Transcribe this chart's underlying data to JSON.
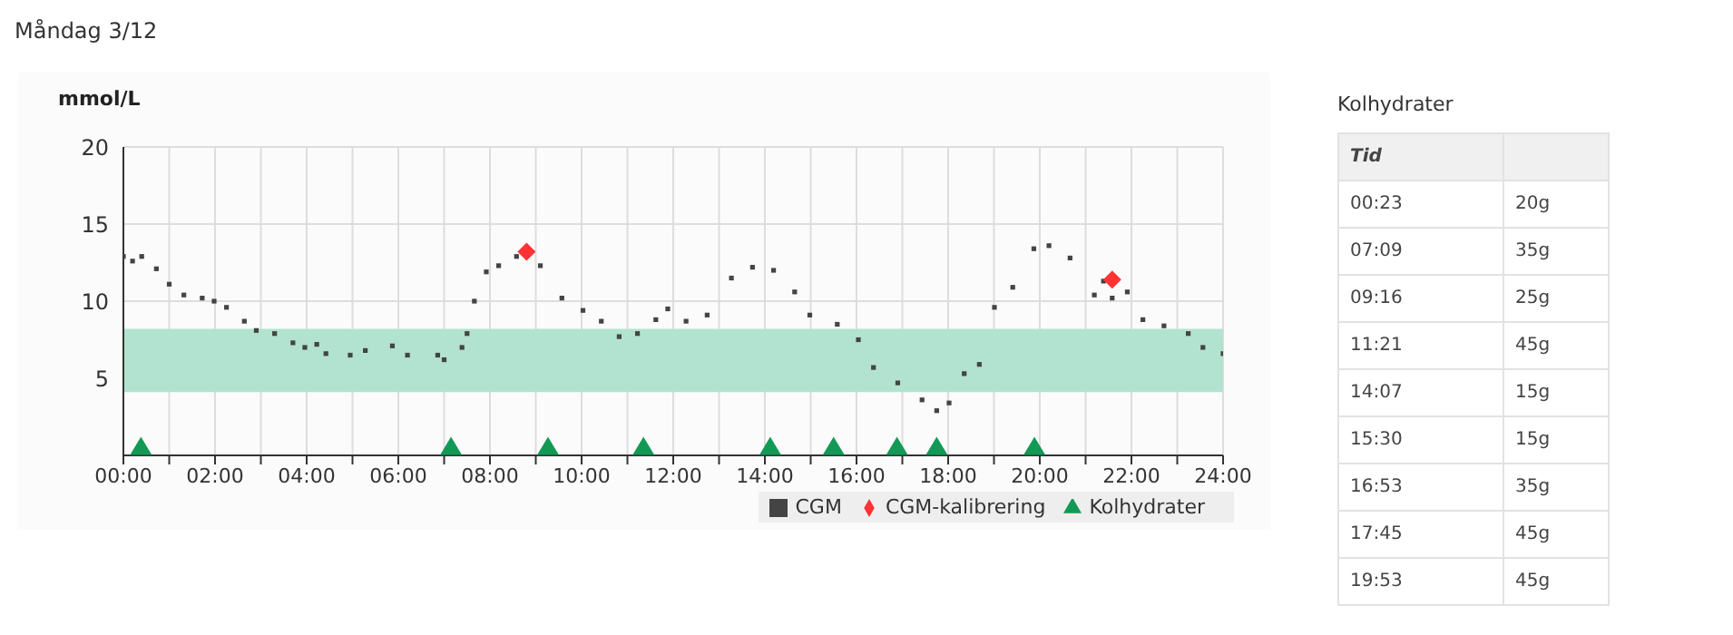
{
  "chart_data": [
    {
      "type": "scatter",
      "title": "Måndag 3/12",
      "ylabel": "mmol/L",
      "xlim": [
        0,
        24
      ],
      "xticks": [
        {
          "value": 0,
          "label": "00:00"
        },
        {
          "value": 1,
          "label": null
        },
        {
          "value": 2,
          "label": "02:00"
        },
        {
          "value": 3,
          "label": null
        },
        {
          "value": 4,
          "label": "04:00"
        },
        {
          "value": 5,
          "label": null
        },
        {
          "value": 6,
          "label": "06:00"
        },
        {
          "value": 7,
          "label": null
        },
        {
          "value": 8,
          "label": "08:00"
        },
        {
          "value": 9,
          "label": null
        },
        {
          "value": 10,
          "label": "10:00"
        },
        {
          "value": 11,
          "label": null
        },
        {
          "value": 12,
          "label": "12:00"
        },
        {
          "value": 13,
          "label": null
        },
        {
          "value": 14,
          "label": "14:00"
        },
        {
          "value": 15,
          "label": null
        },
        {
          "value": 16,
          "label": "16:00"
        },
        {
          "value": 17,
          "label": null
        },
        {
          "value": 18,
          "label": "18:00"
        },
        {
          "value": 19,
          "label": null
        },
        {
          "value": 20,
          "label": "20:00"
        },
        {
          "value": 21,
          "label": null
        },
        {
          "value": 22,
          "label": "22:00"
        },
        {
          "value": 23,
          "label": null
        },
        {
          "value": 24,
          "label": "24:00"
        }
      ],
      "ylim": [
        0,
        20
      ],
      "yticks": [
        5,
        10,
        15,
        20
      ],
      "grid": true,
      "legend": "bottom right",
      "bands": [
        {
          "axis": "y",
          "from": 4.1,
          "to": 8.2,
          "color": "#b2e3d0"
        }
      ],
      "series": [
        {
          "name": "CGM",
          "color": "#444444",
          "marker": "square",
          "x": [
            0,
            0.2,
            0.4,
            0.72,
            1.0,
            1.32,
            1.72,
            1.98,
            2.25,
            2.64,
            2.9,
            3.3,
            3.7,
            3.96,
            4.22,
            4.42,
            4.95,
            5.28,
            5.87,
            6.2,
            6.86,
            7.0,
            7.39,
            7.5,
            7.66,
            7.92,
            8.19,
            8.58,
            9.1,
            9.57,
            10.03,
            10.43,
            10.82,
            11.22,
            11.62,
            11.88,
            12.28,
            12.74,
            13.27,
            13.73,
            14.19,
            14.65,
            14.98,
            15.58,
            16.04,
            16.37,
            16.9,
            17.43,
            17.75,
            18.02,
            18.35,
            18.68,
            19.01,
            19.41,
            19.87,
            20.2,
            20.66,
            21.19,
            21.39,
            21.58,
            21.91,
            22.25,
            22.71,
            23.24,
            23.56,
            24.0
          ],
          "values": [
            12.9,
            12.6,
            12.9,
            12.1,
            11.1,
            10.4,
            10.2,
            10.0,
            9.6,
            8.7,
            8.1,
            7.9,
            7.3,
            7.0,
            7.2,
            6.6,
            6.5,
            6.8,
            7.1,
            6.5,
            6.5,
            6.2,
            7.0,
            7.9,
            10.0,
            11.9,
            12.3,
            12.9,
            12.3,
            10.2,
            9.4,
            8.7,
            7.7,
            7.9,
            8.8,
            9.5,
            8.7,
            9.1,
            11.5,
            12.2,
            12.0,
            10.6,
            9.1,
            8.5,
            7.5,
            5.7,
            4.7,
            3.6,
            2.9,
            3.4,
            5.3,
            5.9,
            9.6,
            10.9,
            13.4,
            13.6,
            12.8,
            10.4,
            11.3,
            10.2,
            10.6,
            8.8,
            8.4,
            7.9,
            7.0,
            6.6
          ]
        },
        {
          "name": "CGM-kalibrering",
          "color": "#ff3333",
          "marker": "diamond",
          "x": [
            8.8,
            21.58
          ],
          "values": [
            13.2,
            11.4
          ]
        },
        {
          "name": "Kolhydrater",
          "color": "#119955",
          "marker": "triangle",
          "x": [
            0.383,
            7.15,
            9.267,
            11.35,
            14.117,
            15.5,
            16.883,
            17.75,
            19.883
          ],
          "values": [
            0.5,
            0.5,
            0.5,
            0.5,
            0.5,
            0.5,
            0.5,
            0.5,
            0.5
          ]
        }
      ]
    },
    {
      "type": "other",
      "title": "Kolhydrater",
      "xlabel": "Tid",
      "categories": [
        "00:23",
        "07:09",
        "09:16",
        "11:21",
        "14:07",
        "15:30",
        "16:53",
        "17:45",
        "19:53"
      ],
      "value_labels": [
        "20g",
        "35g",
        "25g",
        "45g",
        "15g",
        "15g",
        "35g",
        "45g",
        "45g"
      ]
    }
  ]
}
